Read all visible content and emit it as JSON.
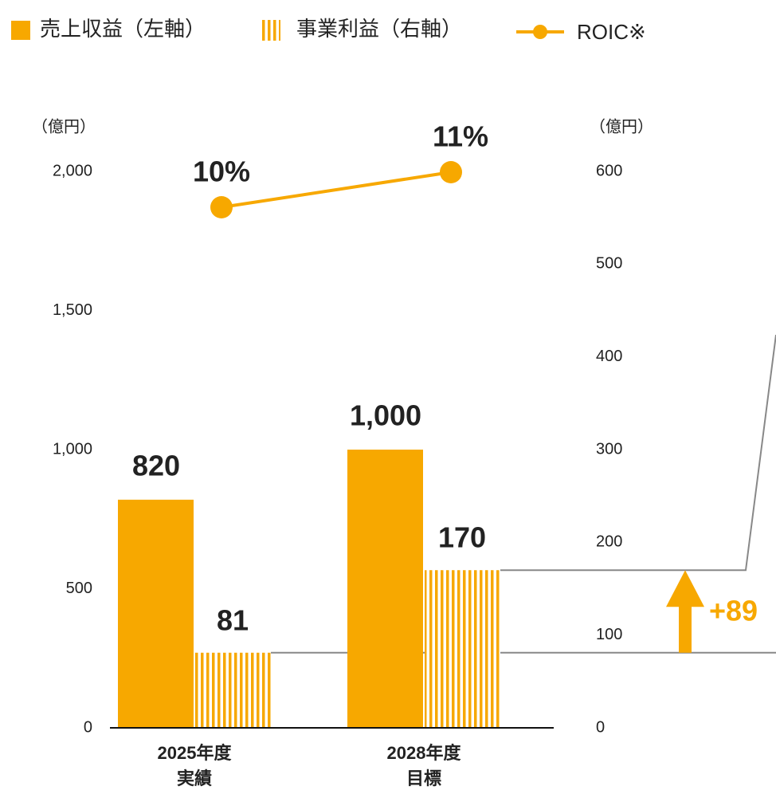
{
  "chart_data": {
    "type": "bar",
    "categories": [
      "2025年度",
      "2028年度"
    ],
    "category_sublabels": [
      "実績",
      "目標"
    ],
    "series": [
      {
        "name": "売上収益（左軸）",
        "color": "#F7A800",
        "values": [
          820,
          1000
        ],
        "value_labels": [
          "820",
          "1,000"
        ]
      },
      {
        "name": "事業利益（右軸）",
        "color": "#F7A800",
        "axis": "y2",
        "values": [
          81,
          170
        ]
      },
      {
        "name": "ROIC※",
        "color": "#F7A800",
        "type": "line",
        "values": [
          10,
          11
        ],
        "value_labels": [
          "10%",
          "11%"
        ]
      }
    ],
    "ylabel": "（億円）",
    "y2label": "（億円）",
    "ylim": [
      0,
      2000
    ],
    "yticks": [
      0,
      500,
      {
        "value": 1000,
        "label": "1,000"
      },
      {
        "value": 1500,
        "label": "1,500"
      },
      {
        "value": 2000,
        "label": "2,000"
      }
    ],
    "y2lim": [
      0,
      600
    ],
    "y2ticks": [
      0,
      100,
      200,
      300,
      400,
      500,
      600
    ],
    "annotations": [
      "+89"
    ]
  }
}
